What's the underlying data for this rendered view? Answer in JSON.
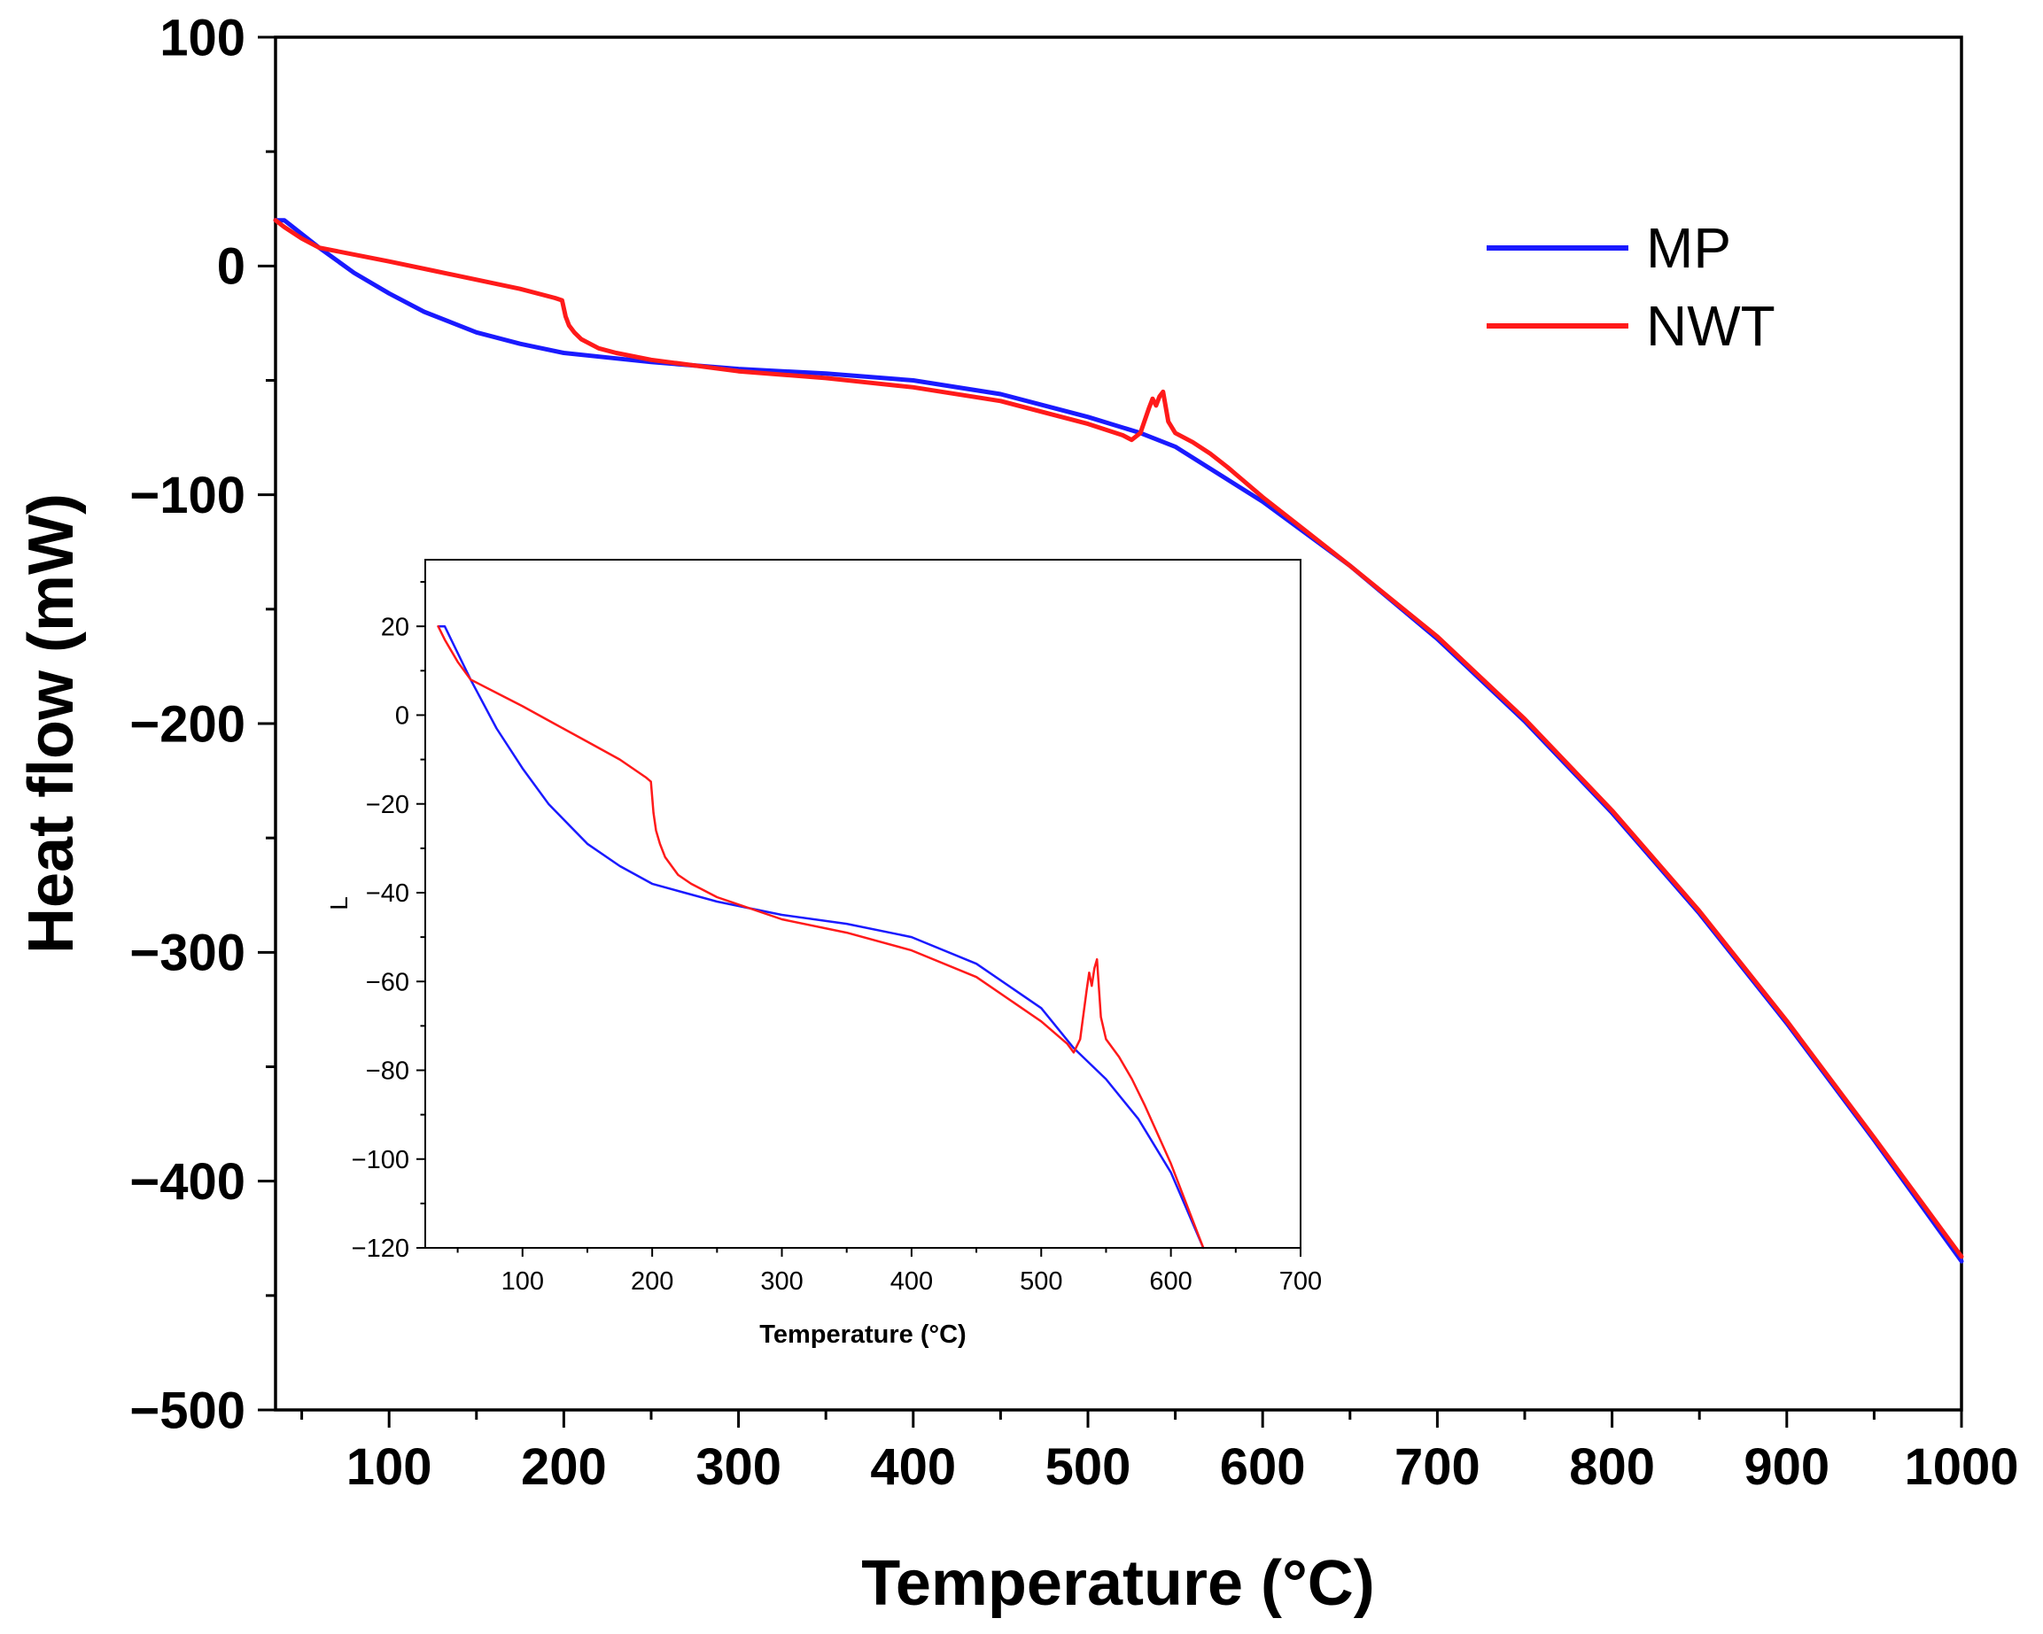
{
  "chart_data": [
    {
      "id": "main",
      "type": "line",
      "title": "",
      "xlabel": "Temperature (°C)",
      "ylabel": "Heat flow (mW)",
      "xlim": [
        35,
        1000
      ],
      "ylim": [
        -500,
        100
      ],
      "xticks": [
        100,
        200,
        300,
        400,
        500,
        600,
        700,
        800,
        900,
        1000
      ],
      "xtick_labels": [
        "100",
        "200",
        "300",
        "400",
        "500",
        "600",
        "700",
        "800",
        "900",
        "1000"
      ],
      "yticks": [
        100,
        0,
        -100,
        -200,
        -300,
        -400,
        -500
      ],
      "ytick_labels": [
        "100",
        "0",
        "−100",
        "−200",
        "−300",
        "−400",
        "−500"
      ],
      "legend": {
        "position": "top-right",
        "entries": [
          "MP",
          "NWT"
        ]
      },
      "series": [
        {
          "name": "MP",
          "color": "#1a1aff",
          "x": [
            35,
            40,
            50,
            60,
            80,
            100,
            120,
            150,
            175,
            200,
            225,
            250,
            300,
            350,
            400,
            450,
            500,
            530,
            550,
            575,
            600,
            625,
            650,
            700,
            750,
            800,
            850,
            900,
            950,
            1000
          ],
          "y": [
            20,
            20,
            14,
            8,
            -3,
            -12,
            -20,
            -29,
            -34,
            -38,
            -40,
            -42,
            -45,
            -47,
            -50,
            -56,
            -66,
            -73,
            -79,
            -91,
            -103,
            -117,
            -131,
            -163,
            -199,
            -239,
            -283,
            -331,
            -382,
            -435
          ]
        },
        {
          "name": "NWT",
          "color": "#ff1a1a",
          "x": [
            35,
            40,
            50,
            60,
            80,
            100,
            125,
            150,
            175,
            195,
            199,
            201,
            203,
            206,
            210,
            220,
            230,
            250,
            300,
            350,
            400,
            450,
            500,
            520,
            525,
            530,
            535,
            537,
            539,
            541,
            543,
            546,
            550,
            560,
            570,
            580,
            600,
            625,
            650,
            700,
            750,
            800,
            850,
            900,
            950,
            1000
          ],
          "y": [
            20,
            17,
            12,
            8,
            5,
            2,
            -2,
            -6,
            -10,
            -14,
            -15,
            -22,
            -26,
            -29,
            -32,
            -36,
            -38,
            -41,
            -46,
            -49,
            -53,
            -59,
            -69,
            -74,
            -76,
            -73,
            -62,
            -58,
            -61,
            -57,
            -55,
            -68,
            -73,
            -77,
            -82,
            -88,
            -101,
            -116,
            -131,
            -162,
            -198,
            -238,
            -282,
            -330,
            -381,
            -433
          ]
        }
      ]
    },
    {
      "id": "inset",
      "type": "line",
      "title": "",
      "xlabel": "Temperature (°C)",
      "ylabel": "L",
      "xlim": [
        25,
        700
      ],
      "ylim": [
        -120,
        35
      ],
      "xticks": [
        100,
        200,
        300,
        400,
        500,
        600,
        700
      ],
      "xtick_labels": [
        "100",
        "200",
        "300",
        "400",
        "500",
        "600",
        "700"
      ],
      "yticks": [
        20,
        0,
        -20,
        -40,
        -60,
        -80,
        -100,
        -120
      ],
      "ytick_labels": [
        "20",
        "0",
        "−20",
        "−40",
        "−60",
        "−80",
        "−100",
        "−120"
      ],
      "series": [
        {
          "name": "MP",
          "color": "#1a1aff",
          "x": [
            35,
            40,
            50,
            60,
            80,
            100,
            120,
            150,
            175,
            200,
            225,
            250,
            300,
            350,
            400,
            450,
            500,
            525,
            550,
            575,
            600,
            625
          ],
          "y": [
            20,
            20,
            14,
            8,
            -3,
            -12,
            -20,
            -29,
            -34,
            -38,
            -40,
            -42,
            -45,
            -47,
            -50,
            -56,
            -66,
            -75,
            -82,
            -91,
            -103,
            -120
          ]
        },
        {
          "name": "NWT",
          "color": "#ff1a1a",
          "x": [
            35,
            40,
            50,
            60,
            80,
            100,
            125,
            150,
            175,
            195,
            199,
            201,
            203,
            206,
            210,
            220,
            230,
            250,
            300,
            350,
            400,
            450,
            500,
            520,
            525,
            530,
            535,
            537,
            539,
            541,
            543,
            546,
            550,
            560,
            570,
            580,
            600,
            625
          ],
          "y": [
            20,
            17,
            12,
            8,
            5,
            2,
            -2,
            -6,
            -10,
            -14,
            -15,
            -22,
            -26,
            -29,
            -32,
            -36,
            -38,
            -41,
            -46,
            -49,
            -53,
            -59,
            -69,
            -74,
            -76,
            -73,
            -62,
            -58,
            -61,
            -57,
            -55,
            -68,
            -73,
            -77,
            -82,
            -88,
            -101,
            -120
          ]
        }
      ]
    }
  ]
}
